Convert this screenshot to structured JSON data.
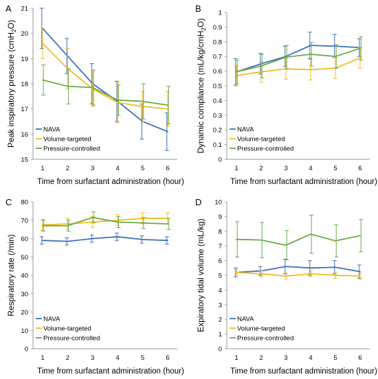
{
  "chart_data": [
    {
      "panel": "A",
      "type": "line",
      "xlabel": "Time from surfactant administration (hour)",
      "ylabel": "Peak inspiratory pressure (cmH2O)",
      "ylabel_parts": [
        "Peak inspiratory pressure (cmH",
        "2",
        "O)"
      ],
      "x": [
        1,
        2,
        3,
        4,
        5,
        6
      ],
      "ylim": [
        15,
        21
      ],
      "yticks": [
        15,
        16,
        17,
        18,
        19,
        20,
        21
      ],
      "xticks": [
        1,
        2,
        3,
        4,
        5,
        6
      ],
      "legend_position": "bottom-left",
      "series": [
        {
          "name": "NAVA",
          "color": "#3c6fc0",
          "values": [
            20.2,
            19.1,
            18.0,
            17.3,
            16.5,
            16.1
          ],
          "errors": [
            0.8,
            0.7,
            0.8,
            0.8,
            0.7,
            0.75
          ]
        },
        {
          "name": "Volume-targeted",
          "color": "#f4bb1c",
          "values": [
            19.6,
            18.6,
            17.8,
            17.25,
            17.1,
            17.0
          ],
          "errors": [
            0.6,
            0.8,
            0.7,
            0.8,
            0.6,
            0.7
          ]
        },
        {
          "name": "Pressure-controlled",
          "color": "#6aaa45",
          "values": [
            18.15,
            17.9,
            17.85,
            17.35,
            17.3,
            17.15
          ],
          "errors": [
            0.6,
            0.7,
            0.7,
            0.6,
            0.7,
            0.75
          ]
        }
      ]
    },
    {
      "panel": "B",
      "type": "line",
      "xlabel": "Time from surfactant administration (hour)",
      "ylabel": "Dynamic compliance (mL/kg/cmH2O)",
      "ylabel_parts": [
        "Dynamic compliance (mL/kg/cmH",
        "2",
        "O)"
      ],
      "x": [
        1,
        2,
        3,
        4,
        5,
        6
      ],
      "ylim": [
        0,
        1
      ],
      "yticks": [
        0,
        0.1,
        0.2,
        0.3,
        0.4,
        0.5,
        0.6,
        0.7,
        0.8,
        0.9,
        1
      ],
      "ytick_labels": [
        "0",
        "0.1",
        "0.2",
        "0.3",
        "0.4",
        "0.5",
        "0.6",
        "0.7",
        "0.8",
        "0.9",
        "1"
      ],
      "xticks": [
        1,
        2,
        3,
        4,
        5,
        6
      ],
      "legend_position": "bottom-left",
      "series": [
        {
          "name": "NAVA",
          "color": "#3c6fc0",
          "values": [
            0.595,
            0.65,
            0.7,
            0.775,
            0.77,
            0.76
          ],
          "errors": [
            0.09,
            0.07,
            0.07,
            0.09,
            0.08,
            0.06
          ]
        },
        {
          "name": "Volume-targeted",
          "color": "#f4bb1c",
          "values": [
            0.57,
            0.595,
            0.615,
            0.61,
            0.62,
            0.69
          ],
          "errors": [
            0.07,
            0.07,
            0.07,
            0.07,
            0.07,
            0.07
          ]
        },
        {
          "name": "Pressure-controlled",
          "color": "#6aaa45",
          "values": [
            0.595,
            0.635,
            0.695,
            0.715,
            0.7,
            0.755
          ],
          "errors": [
            0.08,
            0.08,
            0.08,
            0.08,
            0.08,
            0.08
          ]
        }
      ]
    },
    {
      "panel": "C",
      "type": "line",
      "xlabel": "Time from surfactant administration (hour)",
      "ylabel": "Respiratory rate (/min)",
      "x": [
        1,
        2,
        3,
        4,
        5,
        6
      ],
      "ylim": [
        0,
        80
      ],
      "yticks": [
        0,
        10,
        20,
        30,
        40,
        50,
        60,
        70,
        80
      ],
      "xticks": [
        1,
        2,
        3,
        4,
        5,
        6
      ],
      "legend_position": "bottom-left",
      "series": [
        {
          "name": "NAVA",
          "color": "#3c6fc0",
          "values": [
            59,
            58.5,
            60,
            61,
            59.5,
            59
          ],
          "errors": [
            2,
            2,
            2,
            2,
            2,
            2
          ]
        },
        {
          "name": "Volume-targeted",
          "color": "#f4bb1c",
          "values": [
            67.5,
            68,
            69,
            70,
            71,
            71
          ],
          "errors": [
            3,
            3,
            3,
            3,
            3,
            3
          ]
        },
        {
          "name": "Pressure-controlled",
          "color": "#6aaa45",
          "values": [
            67,
            67,
            71.5,
            69,
            68.5,
            68
          ],
          "errors": [
            3,
            3,
            3,
            3,
            3,
            3
          ]
        }
      ]
    },
    {
      "panel": "D",
      "type": "line",
      "xlabel": "Time from surfactant administration (hour)",
      "ylabel": "Expiratory tidal volume (mL/kg)",
      "x": [
        1,
        2,
        3,
        4,
        5,
        6
      ],
      "ylim": [
        0,
        10
      ],
      "yticks": [
        0,
        1,
        2,
        3,
        4,
        5,
        6,
        7,
        8,
        9,
        10
      ],
      "xticks": [
        1,
        2,
        3,
        4,
        5,
        6
      ],
      "legend_position": "bottom-left",
      "series": [
        {
          "name": "NAVA",
          "color": "#3c6fc0",
          "values": [
            5.2,
            5.3,
            5.6,
            5.5,
            5.55,
            5.25
          ],
          "errors": [
            0.3,
            0.3,
            0.5,
            0.5,
            0.45,
            0.45
          ]
        },
        {
          "name": "Volume-targeted",
          "color": "#f4bb1c",
          "values": [
            5.2,
            5.1,
            4.95,
            5.1,
            5.0,
            4.95
          ],
          "errors": [
            0.2,
            0.2,
            0.2,
            0.2,
            0.2,
            0.2
          ]
        },
        {
          "name": "Pressure-controlled",
          "color": "#6aaa45",
          "values": [
            7.45,
            7.4,
            7.05,
            7.8,
            7.35,
            7.7
          ],
          "errors": [
            1.2,
            1.2,
            1.0,
            1.3,
            1.1,
            1.1
          ]
        }
      ]
    }
  ]
}
